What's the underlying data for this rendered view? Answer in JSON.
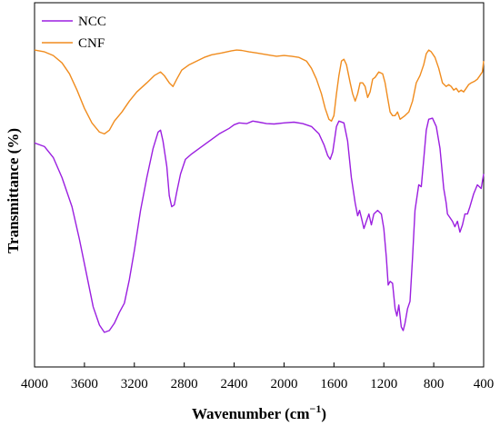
{
  "chart_data": {
    "type": "line",
    "title": "",
    "xlabel": "Wavenumber (cm",
    "xlabel_sup": "−1",
    "xlabel_close": ")",
    "ylabel": "Transmittance (%)",
    "xlim": [
      4000,
      400
    ],
    "x_reversed": true,
    "y_ticks_shown": false,
    "grid": false,
    "legend_position": "top-left",
    "x_ticks": [
      4000,
      3600,
      3200,
      2800,
      2400,
      2000,
      1600,
      1200,
      800,
      400
    ],
    "x_tick_labels": [
      "4000",
      "3600",
      "3200",
      "2800",
      "2400",
      "2000",
      "1600",
      "1200",
      "800",
      "400"
    ],
    "series": [
      {
        "name": "NCC",
        "color": "#9b1fe0",
        "points": [
          [
            4000,
            0.615
          ],
          [
            3920,
            0.605
          ],
          [
            3850,
            0.575
          ],
          [
            3780,
            0.52
          ],
          [
            3700,
            0.44
          ],
          [
            3640,
            0.35
          ],
          [
            3580,
            0.25
          ],
          [
            3530,
            0.165
          ],
          [
            3480,
            0.115
          ],
          [
            3440,
            0.095
          ],
          [
            3400,
            0.1
          ],
          [
            3360,
            0.12
          ],
          [
            3320,
            0.15
          ],
          [
            3280,
            0.175
          ],
          [
            3240,
            0.24
          ],
          [
            3200,
            0.32
          ],
          [
            3150,
            0.43
          ],
          [
            3100,
            0.52
          ],
          [
            3050,
            0.6
          ],
          [
            3010,
            0.645
          ],
          [
            2990,
            0.65
          ],
          [
            2970,
            0.62
          ],
          [
            2940,
            0.55
          ],
          [
            2920,
            0.47
          ],
          [
            2900,
            0.44
          ],
          [
            2880,
            0.445
          ],
          [
            2860,
            0.48
          ],
          [
            2830,
            0.53
          ],
          [
            2790,
            0.57
          ],
          [
            2740,
            0.585
          ],
          [
            2680,
            0.6
          ],
          [
            2600,
            0.62
          ],
          [
            2520,
            0.64
          ],
          [
            2440,
            0.655
          ],
          [
            2400,
            0.665
          ],
          [
            2360,
            0.67
          ],
          [
            2300,
            0.668
          ],
          [
            2250,
            0.675
          ],
          [
            2200,
            0.672
          ],
          [
            2140,
            0.668
          ],
          [
            2080,
            0.667
          ],
          [
            2000,
            0.67
          ],
          [
            1920,
            0.672
          ],
          [
            1850,
            0.668
          ],
          [
            1780,
            0.66
          ],
          [
            1720,
            0.64
          ],
          [
            1680,
            0.61
          ],
          [
            1650,
            0.58
          ],
          [
            1630,
            0.57
          ],
          [
            1610,
            0.59
          ],
          [
            1580,
            0.66
          ],
          [
            1560,
            0.675
          ],
          [
            1520,
            0.67
          ],
          [
            1490,
            0.62
          ],
          [
            1460,
            0.52
          ],
          [
            1430,
            0.45
          ],
          [
            1410,
            0.415
          ],
          [
            1395,
            0.43
          ],
          [
            1380,
            0.41
          ],
          [
            1360,
            0.38
          ],
          [
            1340,
            0.4
          ],
          [
            1320,
            0.42
          ],
          [
            1300,
            0.39
          ],
          [
            1280,
            0.42
          ],
          [
            1250,
            0.43
          ],
          [
            1220,
            0.42
          ],
          [
            1200,
            0.38
          ],
          [
            1180,
            0.3
          ],
          [
            1165,
            0.225
          ],
          [
            1150,
            0.235
          ],
          [
            1130,
            0.23
          ],
          [
            1110,
            0.16
          ],
          [
            1095,
            0.14
          ],
          [
            1080,
            0.17
          ],
          [
            1060,
            0.11
          ],
          [
            1045,
            0.1
          ],
          [
            1030,
            0.12
          ],
          [
            1010,
            0.16
          ],
          [
            990,
            0.18
          ],
          [
            970,
            0.3
          ],
          [
            950,
            0.43
          ],
          [
            920,
            0.5
          ],
          [
            900,
            0.495
          ],
          [
            880,
            0.57
          ],
          [
            860,
            0.65
          ],
          [
            840,
            0.68
          ],
          [
            810,
            0.683
          ],
          [
            780,
            0.66
          ],
          [
            750,
            0.6
          ],
          [
            720,
            0.49
          ],
          [
            700,
            0.45
          ],
          [
            690,
            0.42
          ],
          [
            670,
            0.41
          ],
          [
            650,
            0.4
          ],
          [
            630,
            0.385
          ],
          [
            610,
            0.4
          ],
          [
            590,
            0.37
          ],
          [
            570,
            0.39
          ],
          [
            550,
            0.42
          ],
          [
            530,
            0.42
          ],
          [
            510,
            0.44
          ],
          [
            480,
            0.475
          ],
          [
            450,
            0.5
          ],
          [
            420,
            0.49
          ],
          [
            400,
            0.53
          ]
        ]
      },
      {
        "name": "CNF",
        "color": "#f08c1e",
        "points": [
          [
            4000,
            0.87
          ],
          [
            3920,
            0.865
          ],
          [
            3850,
            0.855
          ],
          [
            3780,
            0.835
          ],
          [
            3720,
            0.805
          ],
          [
            3660,
            0.76
          ],
          [
            3600,
            0.71
          ],
          [
            3540,
            0.67
          ],
          [
            3480,
            0.645
          ],
          [
            3440,
            0.64
          ],
          [
            3400,
            0.65
          ],
          [
            3360,
            0.675
          ],
          [
            3300,
            0.7
          ],
          [
            3240,
            0.73
          ],
          [
            3180,
            0.755
          ],
          [
            3100,
            0.78
          ],
          [
            3040,
            0.8
          ],
          [
            2990,
            0.81
          ],
          [
            2960,
            0.8
          ],
          [
            2920,
            0.78
          ],
          [
            2890,
            0.77
          ],
          [
            2860,
            0.79
          ],
          [
            2820,
            0.815
          ],
          [
            2760,
            0.83
          ],
          [
            2700,
            0.84
          ],
          [
            2640,
            0.85
          ],
          [
            2580,
            0.857
          ],
          [
            2500,
            0.862
          ],
          [
            2420,
            0.868
          ],
          [
            2380,
            0.87
          ],
          [
            2340,
            0.869
          ],
          [
            2280,
            0.865
          ],
          [
            2220,
            0.862
          ],
          [
            2150,
            0.858
          ],
          [
            2100,
            0.855
          ],
          [
            2060,
            0.853
          ],
          [
            2000,
            0.855
          ],
          [
            1940,
            0.853
          ],
          [
            1880,
            0.85
          ],
          [
            1820,
            0.84
          ],
          [
            1780,
            0.82
          ],
          [
            1740,
            0.79
          ],
          [
            1700,
            0.75
          ],
          [
            1670,
            0.71
          ],
          [
            1640,
            0.68
          ],
          [
            1620,
            0.675
          ],
          [
            1600,
            0.69
          ],
          [
            1580,
            0.75
          ],
          [
            1560,
            0.8
          ],
          [
            1540,
            0.84
          ],
          [
            1520,
            0.845
          ],
          [
            1500,
            0.83
          ],
          [
            1470,
            0.78
          ],
          [
            1450,
            0.75
          ],
          [
            1430,
            0.73
          ],
          [
            1410,
            0.75
          ],
          [
            1390,
            0.78
          ],
          [
            1370,
            0.78
          ],
          [
            1350,
            0.77
          ],
          [
            1330,
            0.74
          ],
          [
            1310,
            0.755
          ],
          [
            1290,
            0.79
          ],
          [
            1270,
            0.795
          ],
          [
            1240,
            0.81
          ],
          [
            1210,
            0.805
          ],
          [
            1190,
            0.78
          ],
          [
            1170,
            0.74
          ],
          [
            1150,
            0.7
          ],
          [
            1130,
            0.69
          ],
          [
            1110,
            0.69
          ],
          [
            1090,
            0.7
          ],
          [
            1070,
            0.68
          ],
          [
            1050,
            0.685
          ],
          [
            1030,
            0.69
          ],
          [
            1000,
            0.7
          ],
          [
            970,
            0.73
          ],
          [
            940,
            0.78
          ],
          [
            910,
            0.8
          ],
          [
            880,
            0.83
          ],
          [
            860,
            0.86
          ],
          [
            840,
            0.87
          ],
          [
            820,
            0.865
          ],
          [
            790,
            0.85
          ],
          [
            760,
            0.82
          ],
          [
            730,
            0.78
          ],
          [
            700,
            0.77
          ],
          [
            680,
            0.775
          ],
          [
            660,
            0.77
          ],
          [
            640,
            0.76
          ],
          [
            620,
            0.765
          ],
          [
            600,
            0.755
          ],
          [
            580,
            0.76
          ],
          [
            560,
            0.755
          ],
          [
            540,
            0.765
          ],
          [
            520,
            0.775
          ],
          [
            500,
            0.78
          ],
          [
            470,
            0.785
          ],
          [
            450,
            0.79
          ],
          [
            430,
            0.8
          ],
          [
            410,
            0.81
          ],
          [
            400,
            0.84
          ]
        ]
      }
    ]
  }
}
